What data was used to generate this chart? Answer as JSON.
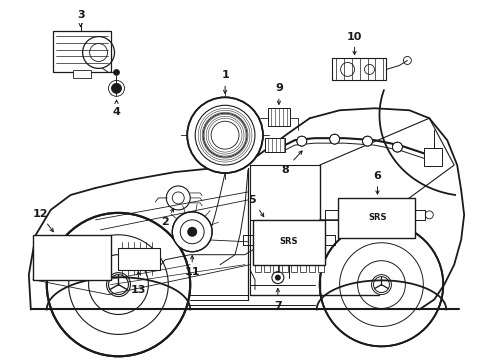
{
  "bg_color": "#ffffff",
  "line_color": "#1a1a1a",
  "figsize": [
    4.89,
    3.6
  ],
  "dpi": 100,
  "xlim": [
    0,
    489
  ],
  "ylim": [
    0,
    360
  ]
}
